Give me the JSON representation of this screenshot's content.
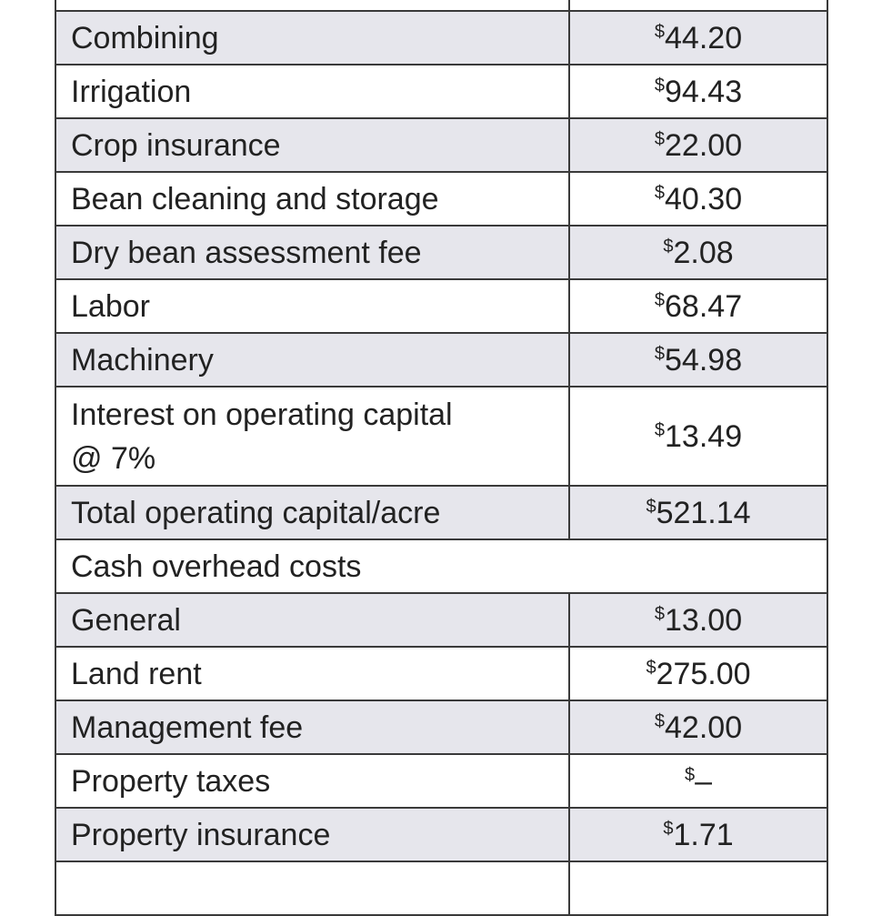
{
  "table": {
    "rows": [
      {
        "label": "Combining",
        "currency": "$",
        "amount": "44.20"
      },
      {
        "label": "Irrigation",
        "currency": "$",
        "amount": "94.43"
      },
      {
        "label": "Crop insurance",
        "currency": "$",
        "amount": "22.00"
      },
      {
        "label": "Bean cleaning and storage",
        "currency": "$",
        "amount": "40.30"
      },
      {
        "label": "Dry bean assessment fee",
        "currency": "$",
        "amount": "2.08"
      },
      {
        "label": "Labor",
        "currency": "$",
        "amount": "68.47"
      },
      {
        "label": "Machinery",
        "currency": "$",
        "amount": "54.98"
      },
      {
        "label": "Interest on operating capital\n@ 7%",
        "currency": "$",
        "amount": "13.49"
      },
      {
        "label": "Total operating capital/acre",
        "currency": "$",
        "amount": "521.14"
      },
      {
        "label": "Cash overhead costs"
      },
      {
        "label": "General",
        "currency": "$",
        "amount": "13.00"
      },
      {
        "label": "Land rent",
        "currency": "$",
        "amount": "275.00"
      },
      {
        "label": "Management fee",
        "currency": "$",
        "amount": "42.00"
      },
      {
        "label": "Property taxes",
        "currency": "$",
        "amount": "–"
      },
      {
        "label": "Property insurance",
        "currency": "$",
        "amount": "1.71"
      }
    ]
  }
}
